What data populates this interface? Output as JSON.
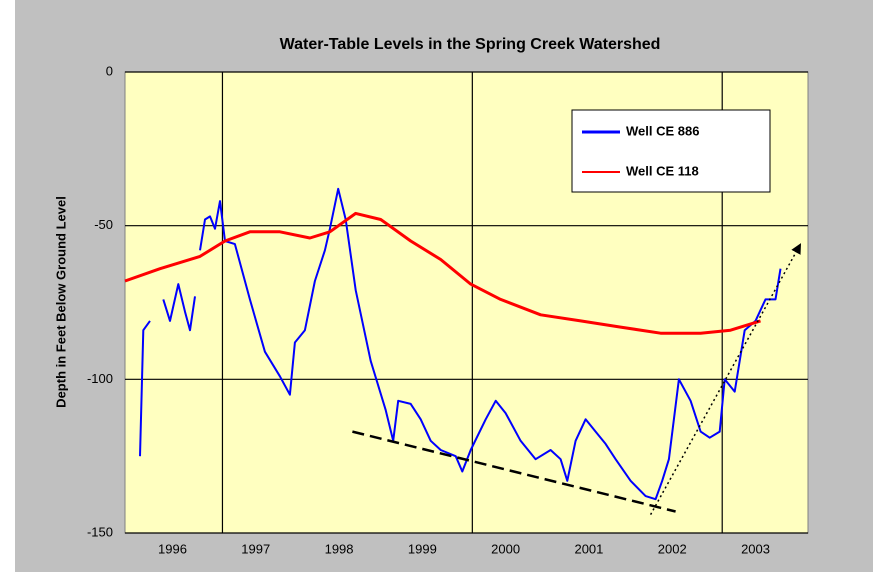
{
  "chart_data": {
    "type": "line",
    "title": "Water-Table Levels in the Spring Creek Watershed",
    "y_label": "Depth in Feet Below Ground Level",
    "xlim": [
      1995.93,
      2004.13
    ],
    "xticks": [
      {
        "value": 1996.5,
        "label": "1996"
      },
      {
        "value": 1997.5,
        "label": "1997"
      },
      {
        "value": 1998.5,
        "label": "1998"
      },
      {
        "value": 1999.5,
        "label": "1999"
      },
      {
        "value": 2000.5,
        "label": "2000"
      },
      {
        "value": 2001.5,
        "label": "2001"
      },
      {
        "value": 2002.5,
        "label": "2002"
      },
      {
        "value": 2003.5,
        "label": "2003"
      }
    ],
    "x_gridlines": [
      1997.1,
      2000.1,
      2003.1
    ],
    "ylim": [
      -150,
      0
    ],
    "yticks": [
      0,
      -50,
      -100,
      -150
    ],
    "grid": true,
    "legend": "upper right",
    "series": [
      {
        "name": "Well CE 886",
        "color": "#0000ff",
        "x": [
          1996.11,
          1996.15,
          1996.23,
          null,
          1996.39,
          1996.47,
          1996.57,
          1996.65,
          1996.71,
          1996.77,
          null,
          1996.83,
          1996.89,
          1996.95,
          1997.01,
          1997.07,
          1997.13,
          1997.25,
          1997.43,
          1997.61,
          1997.79,
          1997.91,
          1997.97,
          1998.09,
          1998.21,
          1998.33,
          1998.39,
          1998.49,
          1998.58,
          1998.7,
          1998.88,
          1999.06,
          1999.15,
          1999.21,
          1999.36,
          1999.48,
          1999.6,
          1999.72,
          1999.9,
          1999.98,
          2000.08,
          2000.26,
          2000.38,
          2000.5,
          2000.68,
          2000.86,
          2001.04,
          2001.16,
          2001.24,
          2001.34,
          2001.46,
          2001.58,
          2001.7,
          2001.82,
          2002.0,
          2002.18,
          2002.3,
          2002.38,
          2002.46,
          2002.58,
          2002.72,
          2002.84,
          2002.95,
          2003.07,
          2003.13,
          2003.25,
          2003.37,
          2003.5,
          2003.62,
          2003.74,
          2003.8
        ],
        "values": [
          -125,
          -84,
          -81,
          null,
          -74,
          -81,
          -69,
          -78,
          -84,
          -73,
          null,
          -58,
          -48,
          -47,
          -51,
          -42,
          -55,
          -56,
          -74,
          -91,
          -99,
          -105,
          -88,
          -84,
          -68,
          -58,
          -51,
          -38,
          -48,
          -71,
          -94,
          -110,
          -120,
          -107,
          -108,
          -113,
          -120,
          -123,
          -125,
          -130,
          -123,
          -113,
          -107,
          -111,
          -120,
          -126,
          -123,
          -126,
          -133,
          -120,
          -113,
          -117,
          -121,
          -126,
          -133,
          -138,
          -139,
          -133,
          -126,
          -100,
          -107,
          -117,
          -119,
          -117,
          -100,
          -104,
          -84,
          -81,
          -74,
          -74,
          -64
        ]
      },
      {
        "name": "Well CE 118",
        "color": "#ff0000",
        "x": [
          1995.93,
          1996.35,
          1996.83,
          1997.13,
          1997.43,
          1997.79,
          1998.15,
          1998.39,
          1998.7,
          1999.0,
          1999.36,
          1999.72,
          2000.08,
          2000.44,
          2000.92,
          2001.4,
          2001.88,
          2002.36,
          2002.84,
          2003.2,
          2003.56
        ],
        "values": [
          -68,
          -64,
          -60,
          -55,
          -52,
          -52,
          -54,
          -52,
          -46,
          -48,
          -55,
          -61,
          -69,
          -74,
          -79,
          -81,
          -83,
          -85,
          -85,
          -84,
          -81
        ]
      }
    ],
    "trend_lines": [
      {
        "style": "dashed",
        "x": [
          1998.66,
          2002.54
        ],
        "values": [
          -117,
          -143
        ]
      },
      {
        "style": "dotted-arrow",
        "x": [
          2002.24,
          2004.04
        ],
        "values": [
          -144,
          -56
        ]
      }
    ]
  }
}
